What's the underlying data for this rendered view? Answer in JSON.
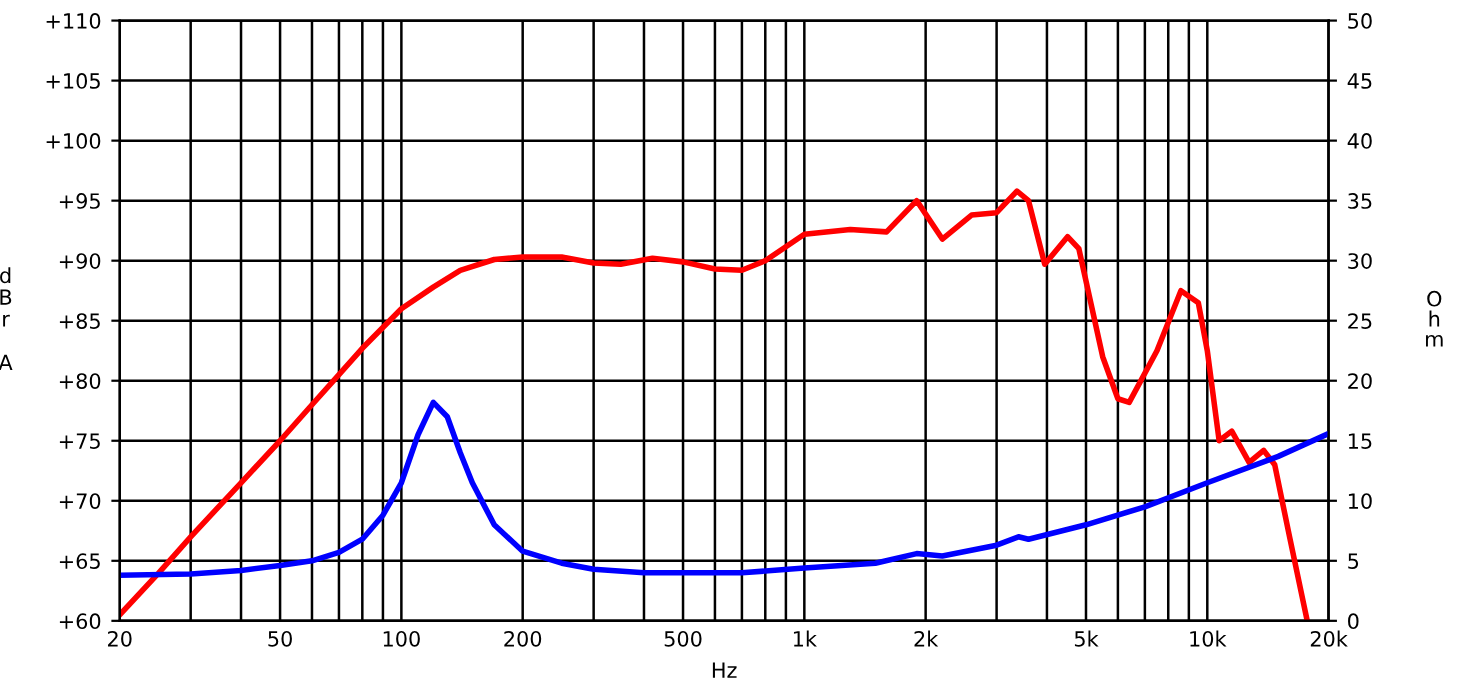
{
  "chart_data": {
    "type": "line",
    "xlabel": "Hz",
    "ylabel": "dBr A",
    "y2label": "Ohm",
    "log": "x",
    "grid": true,
    "legend": false,
    "marker": "none",
    "line_style": "solid",
    "xlim": [
      20,
      20000
    ],
    "xticks": [
      20,
      {
        "value": 30,
        "label": null
      },
      {
        "value": 40,
        "label": null
      },
      50,
      {
        "value": 60,
        "label": null
      },
      {
        "value": 70,
        "label": null
      },
      {
        "value": 80,
        "label": null
      },
      {
        "value": 90,
        "label": null
      },
      100,
      200,
      {
        "value": 300,
        "label": null
      },
      {
        "value": 400,
        "label": null
      },
      500,
      {
        "value": 600,
        "label": null
      },
      {
        "value": 700,
        "label": null
      },
      {
        "value": 800,
        "label": null
      },
      {
        "value": 900,
        "label": null
      },
      {
        "value": 1000,
        "label": "1k"
      },
      {
        "value": 2000,
        "label": "2k"
      },
      {
        "value": 3000,
        "label": null
      },
      {
        "value": 4000,
        "label": null
      },
      {
        "value": 5000,
        "label": "5k"
      },
      {
        "value": 6000,
        "label": null
      },
      {
        "value": 7000,
        "label": null
      },
      {
        "value": 8000,
        "label": null
      },
      {
        "value": 9000,
        "label": null
      },
      {
        "value": 10000,
        "label": "10k"
      },
      {
        "value": 20000,
        "label": "20k"
      }
    ],
    "ylim": [
      60,
      110
    ],
    "yticks": [
      {
        "value": 60,
        "label": "+60"
      },
      {
        "value": 65,
        "label": "+65"
      },
      {
        "value": 70,
        "label": "+70"
      },
      {
        "value": 75,
        "label": "+75"
      },
      {
        "value": 80,
        "label": "+80"
      },
      {
        "value": 85,
        "label": "+85"
      },
      {
        "value": 90,
        "label": "+90"
      },
      {
        "value": 95,
        "label": "+95"
      },
      {
        "value": 100,
        "label": "+100"
      },
      {
        "value": 105,
        "label": "+105"
      },
      {
        "value": 110,
        "label": "+110"
      }
    ],
    "y2lim": [
      0,
      50
    ],
    "y2ticks": [
      0,
      5,
      10,
      15,
      20,
      25,
      30,
      35,
      40,
      45,
      50
    ],
    "series": [
      {
        "color": "#ff0000",
        "x": [
          20,
          25,
          30,
          40,
          50,
          60,
          70,
          80,
          100,
          120,
          140,
          170,
          200,
          250,
          300,
          350,
          420,
          500,
          600,
          700,
          800,
          1000,
          1300,
          1600,
          1900,
          2200,
          2600,
          3000,
          3370,
          3600,
          3950,
          4500,
          4800,
          5500,
          6000,
          6400,
          7500,
          8600,
          9500,
          10000,
          10700,
          11500,
          12700,
          13800,
          14700,
          16000,
          17700
        ],
        "values": [
          60.5,
          64,
          67,
          71.5,
          75,
          78,
          80.5,
          82.7,
          86,
          87.8,
          89.2,
          90.1,
          90.3,
          90.3,
          89.8,
          89.7,
          90.2,
          89.9,
          89.3,
          89.2,
          90,
          92.2,
          92.6,
          92.4,
          95,
          91.8,
          93.8,
          94,
          95.8,
          95,
          89.7,
          92,
          91,
          82,
          78.5,
          78.2,
          82.5,
          87.5,
          86.5,
          82.5,
          75,
          75.8,
          73.2,
          74.2,
          73,
          67,
          60
        ]
      },
      {
        "color": "#0000ff",
        "axis": "y2",
        "x": [
          20,
          30,
          40,
          50,
          60,
          70,
          80,
          90,
          100,
          110,
          120,
          130,
          140,
          150,
          170,
          200,
          250,
          300,
          400,
          500,
          700,
          1000,
          1500,
          1900,
          2200,
          3000,
          3400,
          3600,
          5000,
          7000,
          10000,
          15000,
          20000
        ],
        "values": [
          3.8,
          3.9,
          4.2,
          4.6,
          5,
          5.7,
          6.8,
          8.8,
          11.5,
          15.5,
          18.2,
          17,
          14,
          11.5,
          8,
          5.8,
          4.8,
          4.3,
          4,
          4,
          4,
          4.4,
          4.8,
          5.6,
          5.4,
          6.3,
          7,
          6.8,
          8,
          9.5,
          11.5,
          13.7,
          15.6
        ]
      }
    ]
  }
}
